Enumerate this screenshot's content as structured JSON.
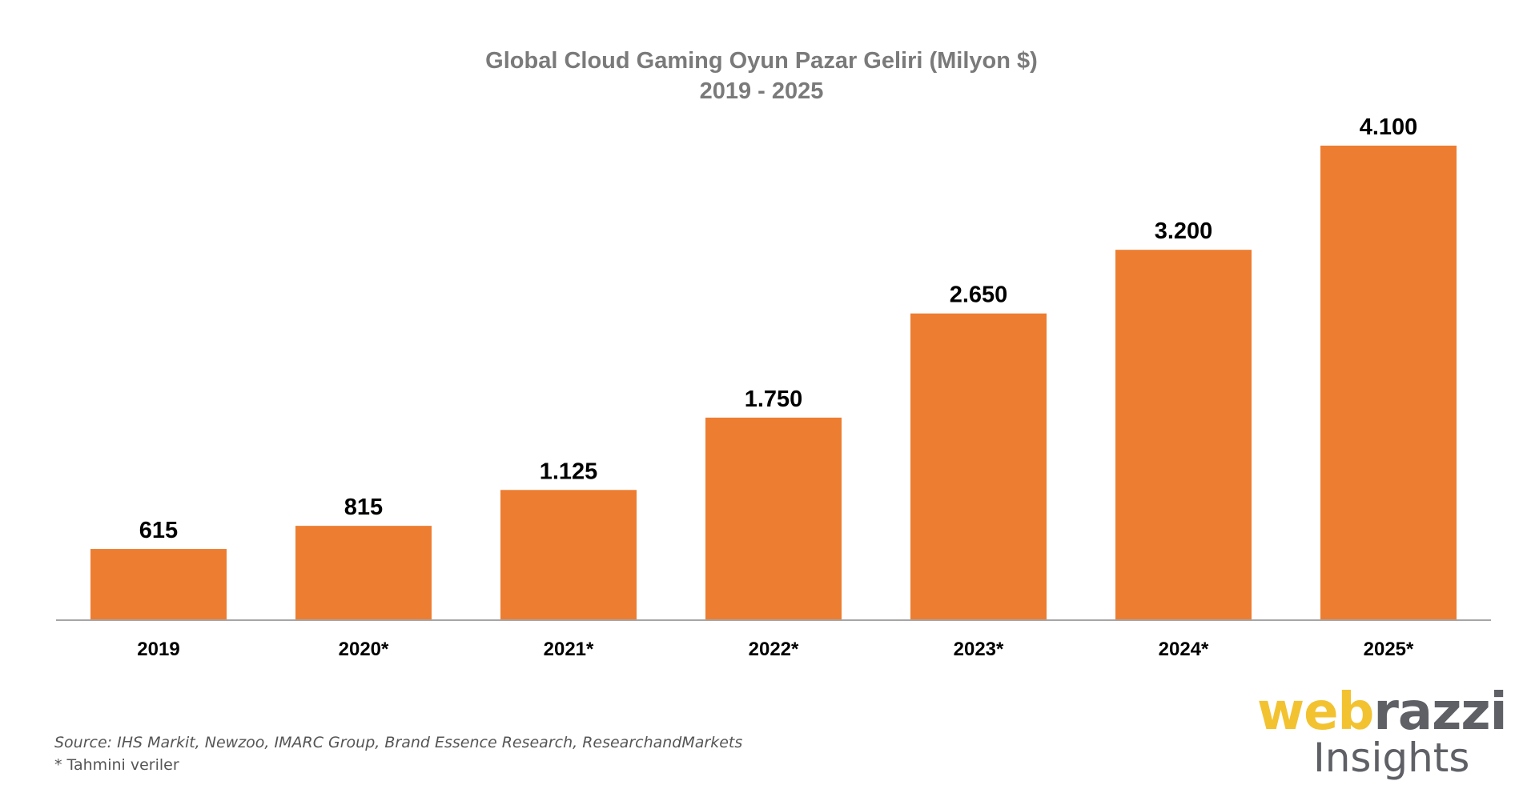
{
  "chart_data": {
    "type": "bar",
    "title": "Global Cloud Gaming Oyun Pazar Geliri (Milyon $)",
    "subtitle": "2019 - 2025",
    "categories": [
      "2019",
      "2020*",
      "2021*",
      "2022*",
      "2023*",
      "2024*",
      "2025*"
    ],
    "values": [
      615,
      815,
      1125,
      1750,
      2650,
      3200,
      4100
    ],
    "value_labels": [
      "615",
      "815",
      "1.125",
      "1.750",
      "2.650",
      "3.200",
      "4.100"
    ],
    "xlabel": "",
    "ylabel": "",
    "ylim": [
      0,
      4100
    ],
    "grid": false,
    "legend": "none",
    "bar_color": "#ed7d31",
    "axis_color": "#a6a6a6"
  },
  "footer": {
    "source": "Source: IHS Markit, Newzoo, IMARC Group, Brand Essence Research, ResearchandMarkets",
    "footnote": "* Tahmini veriler"
  },
  "logo": {
    "part1": "web",
    "part2": "razzi",
    "sub": "Insights",
    "colors": {
      "accent": "#f2c230",
      "dark": "#5f6066"
    }
  }
}
